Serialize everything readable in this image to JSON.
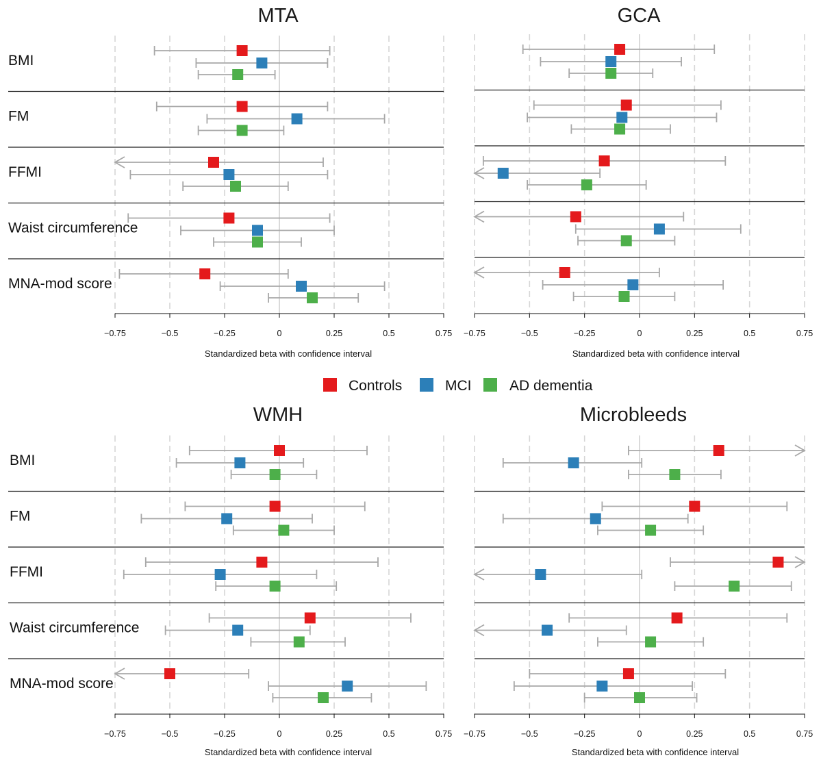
{
  "legend": [
    {
      "label": "Controls",
      "color": "#e41a1c"
    },
    {
      "label": "MCI",
      "color": "#2c7fb8"
    },
    {
      "label": "AD dementia",
      "color": "#4daf4a"
    }
  ],
  "chart_data": [
    {
      "type": "forest",
      "title": "MTA",
      "xlabel": "Standardized beta with confidence interval",
      "xlim": [
        -0.75,
        0.75
      ],
      "xticks": [
        -0.75,
        -0.5,
        -0.25,
        0,
        0.25,
        0.5,
        0.75
      ],
      "xtick_labels": [
        "−0.75",
        "−0.5",
        "−0.25",
        "0",
        "0.25",
        "0.5",
        "0.75"
      ],
      "grid": "dashed vertical",
      "rows": [
        {
          "label": "BMI",
          "series": [
            {
              "group": "Controls",
              "beta": -0.17,
              "lo": -0.57,
              "hi": 0.23
            },
            {
              "group": "MCI",
              "beta": -0.08,
              "lo": -0.38,
              "hi": 0.22
            },
            {
              "group": "AD dementia",
              "beta": -0.19,
              "lo": -0.37,
              "hi": -0.02
            }
          ]
        },
        {
          "label": "FM",
          "series": [
            {
              "group": "Controls",
              "beta": -0.17,
              "lo": -0.56,
              "hi": 0.22
            },
            {
              "group": "MCI",
              "beta": 0.08,
              "lo": -0.33,
              "hi": 0.48
            },
            {
              "group": "AD dementia",
              "beta": -0.17,
              "lo": -0.37,
              "hi": 0.02
            }
          ]
        },
        {
          "label": "FFMI",
          "series": [
            {
              "group": "Controls",
              "beta": -0.3,
              "lo": -0.75,
              "hi": 0.2,
              "lo_arrow": true
            },
            {
              "group": "MCI",
              "beta": -0.23,
              "lo": -0.68,
              "hi": 0.22
            },
            {
              "group": "AD dementia",
              "beta": -0.2,
              "lo": -0.44,
              "hi": 0.04
            }
          ]
        },
        {
          "label": "Waist circumference",
          "series": [
            {
              "group": "Controls",
              "beta": -0.23,
              "lo": -0.69,
              "hi": 0.23
            },
            {
              "group": "MCI",
              "beta": -0.1,
              "lo": -0.45,
              "hi": 0.25
            },
            {
              "group": "AD dementia",
              "beta": -0.1,
              "lo": -0.3,
              "hi": 0.1
            }
          ]
        },
        {
          "label": "MNA-mod score",
          "series": [
            {
              "group": "Controls",
              "beta": -0.34,
              "lo": -0.73,
              "hi": 0.04
            },
            {
              "group": "MCI",
              "beta": 0.1,
              "lo": -0.27,
              "hi": 0.48
            },
            {
              "group": "AD dementia",
              "beta": 0.15,
              "lo": -0.05,
              "hi": 0.36
            }
          ]
        }
      ]
    },
    {
      "type": "forest",
      "title": "GCA",
      "xlabel": "Standardized beta with confidence interval",
      "xlim": [
        -0.75,
        0.75
      ],
      "xticks": [
        -0.75,
        -0.5,
        -0.25,
        0,
        0.25,
        0.5,
        0.75
      ],
      "xtick_labels": [
        "−0.75",
        "−0.5",
        "−0.25",
        "0",
        "0.25",
        "0.5",
        "0.75"
      ],
      "grid": "dashed vertical",
      "rows": [
        {
          "label": "BMI",
          "series": [
            {
              "group": "Controls",
              "beta": -0.09,
              "lo": -0.53,
              "hi": 0.34
            },
            {
              "group": "MCI",
              "beta": -0.13,
              "lo": -0.45,
              "hi": 0.19
            },
            {
              "group": "AD dementia",
              "beta": -0.13,
              "lo": -0.32,
              "hi": 0.06
            }
          ]
        },
        {
          "label": "FM",
          "series": [
            {
              "group": "Controls",
              "beta": -0.06,
              "lo": -0.48,
              "hi": 0.37
            },
            {
              "group": "MCI",
              "beta": -0.08,
              "lo": -0.51,
              "hi": 0.35
            },
            {
              "group": "AD dementia",
              "beta": -0.09,
              "lo": -0.31,
              "hi": 0.14
            }
          ]
        },
        {
          "label": "FFMI",
          "series": [
            {
              "group": "Controls",
              "beta": -0.16,
              "lo": -0.71,
              "hi": 0.39
            },
            {
              "group": "MCI",
              "beta": -0.62,
              "lo": -0.75,
              "hi": -0.18,
              "lo_arrow": true
            },
            {
              "group": "AD dementia",
              "beta": -0.24,
              "lo": -0.51,
              "hi": 0.03
            }
          ]
        },
        {
          "label": "Waist circumference",
          "series": [
            {
              "group": "Controls",
              "beta": -0.29,
              "lo": -0.75,
              "hi": 0.2,
              "lo_arrow": true
            },
            {
              "group": "MCI",
              "beta": 0.09,
              "lo": -0.29,
              "hi": 0.46
            },
            {
              "group": "AD dementia",
              "beta": -0.06,
              "lo": -0.28,
              "hi": 0.16
            }
          ]
        },
        {
          "label": "MNA-mod score",
          "series": [
            {
              "group": "Controls",
              "beta": -0.34,
              "lo": -0.75,
              "hi": 0.09,
              "lo_arrow": true
            },
            {
              "group": "MCI",
              "beta": -0.03,
              "lo": -0.44,
              "hi": 0.38
            },
            {
              "group": "AD dementia",
              "beta": -0.07,
              "lo": -0.3,
              "hi": 0.16
            }
          ]
        }
      ]
    },
    {
      "type": "forest",
      "title": "WMH",
      "xlabel": "Standardized beta with confidence interval",
      "xlim": [
        -0.75,
        0.75
      ],
      "xticks": [
        -0.75,
        -0.5,
        -0.25,
        0,
        0.25,
        0.5,
        0.75
      ],
      "xtick_labels": [
        "−0.75",
        "−0.5",
        "−0.25",
        "0",
        "0.25",
        "0.5",
        "0.75"
      ],
      "grid": "dashed vertical",
      "rows": [
        {
          "label": "BMI",
          "series": [
            {
              "group": "Controls",
              "beta": 0.0,
              "lo": -0.41,
              "hi": 0.4
            },
            {
              "group": "MCI",
              "beta": -0.18,
              "lo": -0.47,
              "hi": 0.11
            },
            {
              "group": "AD dementia",
              "beta": -0.02,
              "lo": -0.22,
              "hi": 0.17
            }
          ]
        },
        {
          "label": "FM",
          "series": [
            {
              "group": "Controls",
              "beta": -0.02,
              "lo": -0.43,
              "hi": 0.39
            },
            {
              "group": "MCI",
              "beta": -0.24,
              "lo": -0.63,
              "hi": 0.15
            },
            {
              "group": "AD dementia",
              "beta": 0.02,
              "lo": -0.21,
              "hi": 0.25
            }
          ]
        },
        {
          "label": "FFMI",
          "series": [
            {
              "group": "Controls",
              "beta": -0.08,
              "lo": -0.61,
              "hi": 0.45
            },
            {
              "group": "MCI",
              "beta": -0.27,
              "lo": -0.71,
              "hi": 0.17
            },
            {
              "group": "AD dementia",
              "beta": -0.02,
              "lo": -0.29,
              "hi": 0.26
            }
          ]
        },
        {
          "label": "Waist circumference",
          "series": [
            {
              "group": "Controls",
              "beta": 0.14,
              "lo": -0.32,
              "hi": 0.6
            },
            {
              "group": "MCI",
              "beta": -0.19,
              "lo": -0.52,
              "hi": 0.14
            },
            {
              "group": "AD dementia",
              "beta": 0.09,
              "lo": -0.13,
              "hi": 0.3
            }
          ]
        },
        {
          "label": "MNA-mod score",
          "series": [
            {
              "group": "Controls",
              "beta": -0.5,
              "lo": -0.75,
              "hi": -0.14,
              "lo_arrow": true
            },
            {
              "group": "MCI",
              "beta": 0.31,
              "lo": -0.05,
              "hi": 0.67
            },
            {
              "group": "AD dementia",
              "beta": 0.2,
              "lo": -0.03,
              "hi": 0.42
            }
          ]
        }
      ]
    },
    {
      "type": "forest",
      "title": "Microbleeds",
      "xlabel": "Standardized beta with confidence interval",
      "xlim": [
        -0.75,
        0.75
      ],
      "xticks": [
        -0.75,
        -0.5,
        -0.25,
        0,
        0.25,
        0.5,
        0.75
      ],
      "xtick_labels": [
        "−0.75",
        "−0.5",
        "−0.25",
        "0",
        "0.25",
        "0.5",
        "0.75"
      ],
      "grid": "dashed vertical",
      "rows": [
        {
          "label": "BMI",
          "series": [
            {
              "group": "Controls",
              "beta": 0.36,
              "lo": -0.05,
              "hi": 0.75,
              "hi_arrow": true
            },
            {
              "group": "MCI",
              "beta": -0.3,
              "lo": -0.62,
              "hi": 0.01
            },
            {
              "group": "AD dementia",
              "beta": 0.16,
              "lo": -0.05,
              "hi": 0.37
            }
          ]
        },
        {
          "label": "FM",
          "series": [
            {
              "group": "Controls",
              "beta": 0.25,
              "lo": -0.17,
              "hi": 0.67
            },
            {
              "group": "MCI",
              "beta": -0.2,
              "lo": -0.62,
              "hi": 0.22
            },
            {
              "group": "AD dementia",
              "beta": 0.05,
              "lo": -0.19,
              "hi": 0.29
            }
          ]
        },
        {
          "label": "FFMI",
          "series": [
            {
              "group": "Controls",
              "beta": 0.63,
              "lo": 0.14,
              "hi": 0.75,
              "hi_arrow": true
            },
            {
              "group": "MCI",
              "beta": -0.45,
              "lo": -0.75,
              "hi": 0.01,
              "lo_arrow": true
            },
            {
              "group": "AD dementia",
              "beta": 0.43,
              "lo": 0.16,
              "hi": 0.69
            }
          ]
        },
        {
          "label": "Waist circumference",
          "series": [
            {
              "group": "Controls",
              "beta": 0.17,
              "lo": -0.32,
              "hi": 0.67
            },
            {
              "group": "MCI",
              "beta": -0.42,
              "lo": -0.75,
              "hi": -0.06,
              "lo_arrow": true
            },
            {
              "group": "AD dementia",
              "beta": 0.05,
              "lo": -0.19,
              "hi": 0.29
            }
          ]
        },
        {
          "label": "MNA-mod score",
          "series": [
            {
              "group": "Controls",
              "beta": -0.05,
              "lo": -0.5,
              "hi": 0.39
            },
            {
              "group": "MCI",
              "beta": -0.17,
              "lo": -0.57,
              "hi": 0.24
            },
            {
              "group": "AD dementia",
              "beta": 0.0,
              "lo": -0.25,
              "hi": 0.26
            }
          ]
        }
      ]
    }
  ]
}
